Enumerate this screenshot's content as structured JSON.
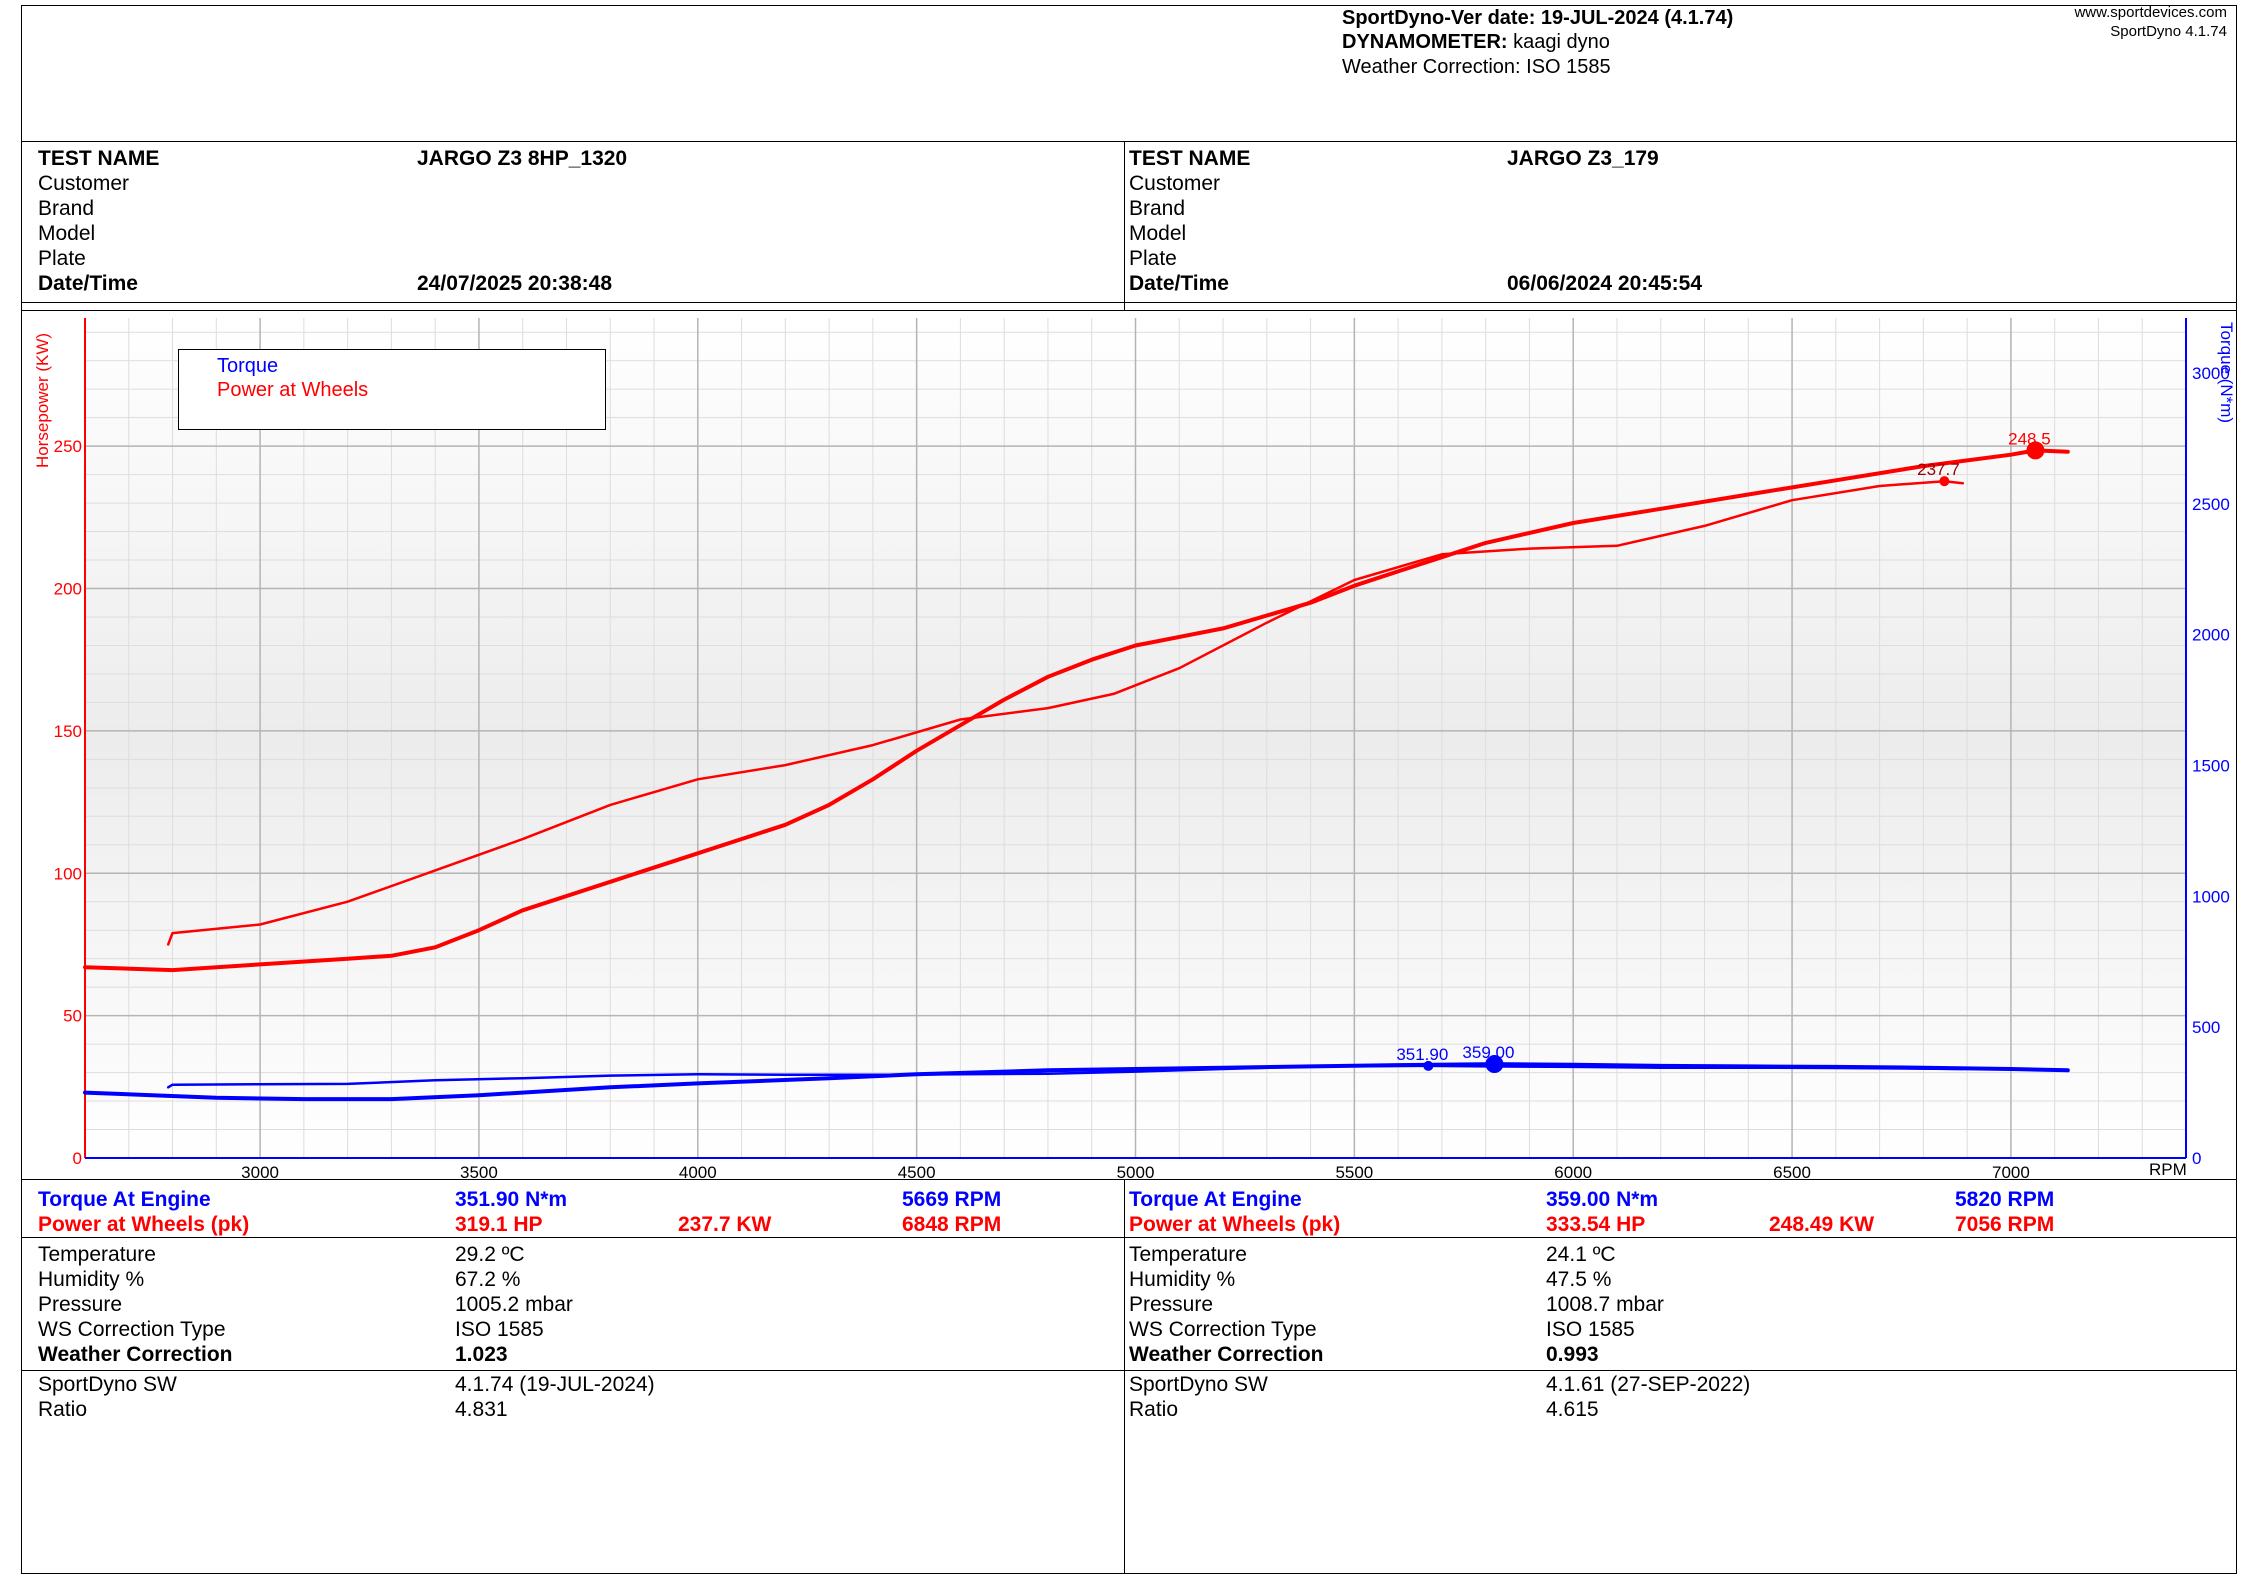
{
  "header": {
    "ver_label": "SportDyno-Ver date:",
    "ver_value": "19-JUL-2024 (4.1.74)",
    "dyno_label": "DYNAMOMETER:",
    "dyno_value": "kaagi dyno",
    "weather_line": "Weather Correction: ISO 1585",
    "site": "www.sportdevices.com",
    "site_version": "SportDyno 4.1.74"
  },
  "tests": [
    {
      "test_name_label": "TEST NAME",
      "test_name": "JARGO Z3 8HP_1320",
      "customer_label": "Customer",
      "brand_label": "Brand",
      "model_label": "Model",
      "plate_label": "Plate",
      "datetime_label": "Date/Time",
      "datetime": "24/07/2025 20:38:48",
      "torque_label": "Torque At Engine",
      "torque_value": "351.90 N*m",
      "torque_rpm": "5669 RPM",
      "power_label": "Power at Wheels (pk)",
      "power_hp": "319.1 HP",
      "power_kw": "237.7 KW",
      "power_rpm": "6848 RPM",
      "temperature_label": "Temperature",
      "temperature": "29.2 ºC",
      "humidity_label": "Humidity %",
      "humidity": "67.2 %",
      "pressure_label": "Pressure",
      "pressure": "1005.2 mbar",
      "ws_label": "WS Correction Type",
      "ws_value": "ISO 1585",
      "wc_label": "Weather Correction",
      "wc_value": "1.023",
      "sw_label": "SportDyno SW",
      "sw_value": "4.1.74 (19-JUL-2024)",
      "ratio_label": "Ratio",
      "ratio_value": "4.831"
    },
    {
      "test_name_label": "TEST NAME",
      "test_name": "JARGO Z3_179",
      "customer_label": "Customer",
      "brand_label": "Brand",
      "model_label": "Model",
      "plate_label": "Plate",
      "datetime_label": "Date/Time",
      "datetime": "06/06/2024 20:45:54",
      "torque_label": "Torque At Engine",
      "torque_value": "359.00 N*m",
      "torque_rpm": "5820 RPM",
      "power_label": "Power at Wheels (pk)",
      "power_hp": "333.54 HP",
      "power_kw": "248.49 KW",
      "power_rpm": "7056 RPM",
      "temperature_label": "Temperature",
      "temperature": "24.1 ºC",
      "humidity_label": "Humidity %",
      "humidity": "47.5 %",
      "pressure_label": "Pressure",
      "pressure": "1008.7 mbar",
      "ws_label": "WS Correction Type",
      "ws_value": "ISO 1585",
      "wc_label": "Weather Correction",
      "wc_value": "0.993",
      "sw_label": "SportDyno SW",
      "sw_value": "4.1.61 (27-SEP-2022)",
      "ratio_label": "Ratio",
      "ratio_value": "4.615"
    }
  ],
  "chart_data": {
    "type": "line",
    "y_left_label": "Horsepower (KW)",
    "y_right_label": "Torque (N*m)",
    "x_unit_label": "RPM",
    "xlim": [
      2600,
      7400
    ],
    "ylim_left": [
      0,
      295
    ],
    "ylim_right": [
      0,
      3210
    ],
    "x_ticks": [
      3000,
      3500,
      4000,
      4500,
      5000,
      5500,
      6000,
      6500,
      7000
    ],
    "y_left_ticks": [
      0,
      50,
      100,
      150,
      200,
      250
    ],
    "y_right_ticks": [
      0,
      500,
      1000,
      1500,
      2000,
      2500,
      3000
    ],
    "grid": true,
    "legend_placement": "top-left",
    "legend": [
      "Torque",
      "Power at Wheels"
    ],
    "colors": {
      "torque": "#0000ff",
      "power": "#ff0000",
      "label_dark": "#990000"
    },
    "series": [
      {
        "name": "Power at Wheels",
        "run": "JARGO Z3_179",
        "axis": "left",
        "width": "thick",
        "x": [
          2600,
          2800,
          3000,
          3200,
          3300,
          3400,
          3500,
          3600,
          3800,
          4000,
          4200,
          4300,
          4400,
          4500,
          4600,
          4700,
          4800,
          4900,
          5000,
          5200,
          5400,
          5500,
          5600,
          5700,
          5800,
          6000,
          6200,
          6400,
          6600,
          6800,
          7000,
          7056,
          7130
        ],
        "y": [
          67,
          66,
          68,
          70,
          71,
          74,
          80,
          87,
          97,
          107,
          117,
          124,
          133,
          143,
          152,
          161,
          169,
          175,
          180,
          186,
          195,
          201,
          206,
          211,
          216,
          223,
          228,
          233,
          238,
          243,
          247,
          248.5,
          248
        ]
      },
      {
        "name": "Power at Wheels",
        "run": "JARGO Z3 8HP_1320",
        "axis": "left",
        "width": "thin",
        "x": [
          2790,
          2800,
          3000,
          3200,
          3400,
          3600,
          3800,
          4000,
          4200,
          4400,
          4600,
          4800,
          4950,
          5100,
          5300,
          5500,
          5700,
          5900,
          6100,
          6300,
          6500,
          6700,
          6848,
          6890
        ],
        "y": [
          75,
          79,
          82,
          90,
          101,
          112,
          124,
          133,
          138,
          145,
          154,
          158,
          163,
          172,
          188,
          203,
          212,
          214,
          215,
          222,
          231,
          236,
          237.7,
          237
        ]
      },
      {
        "name": "Torque",
        "run": "JARGO Z3_179",
        "axis": "right",
        "width": "thick",
        "x": [
          2600,
          2900,
          3100,
          3300,
          3500,
          3800,
          4000,
          4300,
          4500,
          4800,
          5000,
          5200,
          5400,
          5600,
          5820,
          6000,
          6200,
          6400,
          6600,
          6800,
          7000,
          7130
        ],
        "y": [
          250,
          230,
          225,
          225,
          240,
          270,
          285,
          305,
          320,
          335,
          340,
          345,
          350,
          355,
          359,
          356,
          352,
          350,
          348,
          345,
          340,
          335
        ]
      },
      {
        "name": "Torque",
        "run": "JARGO Z3 8HP_1320",
        "axis": "right",
        "width": "thin",
        "x": [
          2790,
          2800,
          3000,
          3200,
          3400,
          3600,
          3800,
          4000,
          4200,
          4400,
          4600,
          4800,
          5000,
          5200,
          5400,
          5669,
          5800,
          6000,
          6200,
          6400,
          6600,
          6890
        ],
        "y": [
          270,
          280,
          282,
          283,
          297,
          305,
          315,
          320,
          318,
          318,
          320,
          322,
          330,
          340,
          350,
          351.9,
          350,
          348,
          345,
          345,
          344,
          340
        ]
      }
    ],
    "annotations": [
      {
        "series": 0,
        "x": 7056,
        "y": 248.5,
        "label": "248.5",
        "big_marker": true
      },
      {
        "series": 1,
        "x": 6848,
        "y": 237.7,
        "label": "237.7",
        "big_marker": false
      },
      {
        "series": 2,
        "x": 5820,
        "y": 359.0,
        "label": "359.00",
        "big_marker": true
      },
      {
        "series": 3,
        "x": 5669,
        "y": 351.9,
        "label": "351.90",
        "big_marker": false
      }
    ]
  }
}
